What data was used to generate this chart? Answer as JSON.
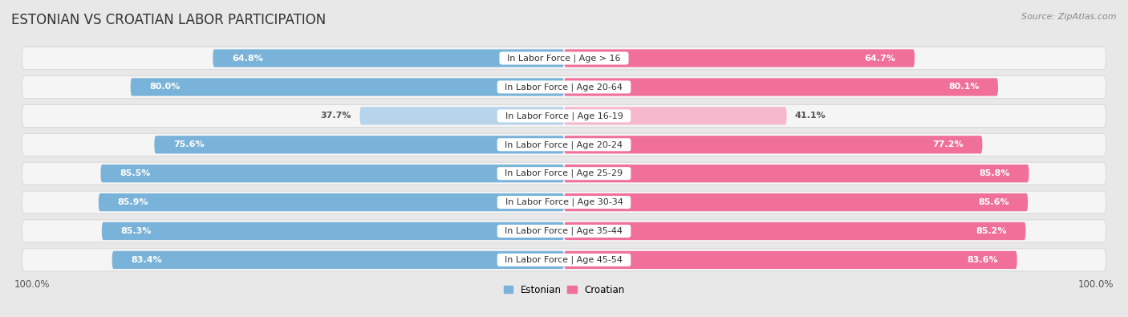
{
  "title": "ESTONIAN VS CROATIAN LABOR PARTICIPATION",
  "source": "Source: ZipAtlas.com",
  "categories": [
    "In Labor Force | Age > 16",
    "In Labor Force | Age 20-64",
    "In Labor Force | Age 16-19",
    "In Labor Force | Age 20-24",
    "In Labor Force | Age 25-29",
    "In Labor Force | Age 30-34",
    "In Labor Force | Age 35-44",
    "In Labor Force | Age 45-54"
  ],
  "estonian_values": [
    64.8,
    80.0,
    37.7,
    75.6,
    85.5,
    85.9,
    85.3,
    83.4
  ],
  "croatian_values": [
    64.7,
    80.1,
    41.1,
    77.2,
    85.8,
    85.6,
    85.2,
    83.6
  ],
  "estonian_color": "#7ab3d9",
  "estonian_color_light": "#b8d4ea",
  "croatian_color": "#f0709a",
  "croatian_color_light": "#f5b8cc",
  "bg_color": "#e8e8e8",
  "row_bg_color": "#f5f5f5",
  "legend_estonian": "Estonian",
  "legend_croatian": "Croatian",
  "title_fontsize": 12,
  "label_fontsize": 8,
  "value_fontsize": 8,
  "footer_fontsize": 8.5
}
